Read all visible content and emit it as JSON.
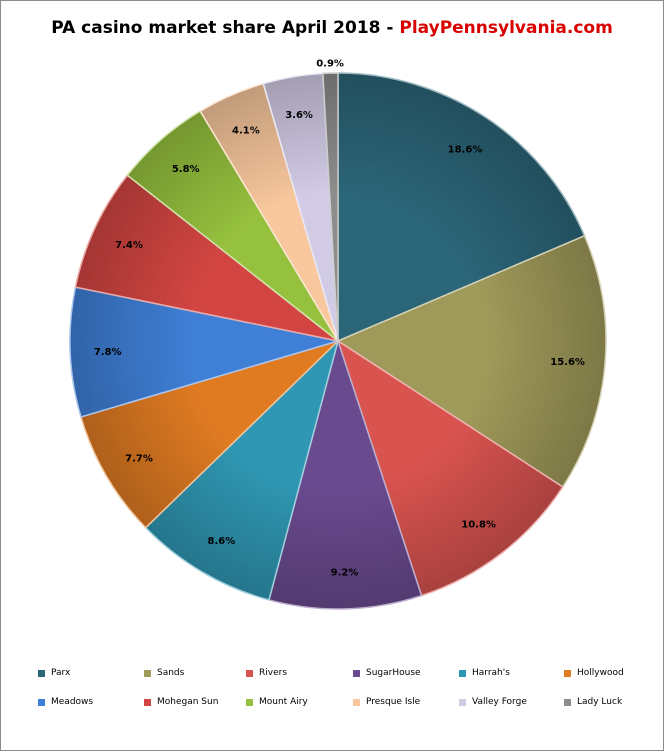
{
  "title": {
    "main": "PA casino market share April 2018 - ",
    "brand": "PlayPennsylvania.com"
  },
  "colors": {
    "brand": "#d90000"
  },
  "chart_data": {
    "type": "pie",
    "title": "PA casino market share April 2018 - PlayPennsylvania.com",
    "legend_position": "bottom",
    "categories": [
      "Parx",
      "Sands",
      "Rivers",
      "SugarHouse",
      "Harrah's",
      "Hollywood",
      "Meadows",
      "Mohegan Sun",
      "Mount Airy",
      "Presque Isle",
      "Valley Forge",
      "Lady Luck"
    ],
    "values": [
      18.6,
      15.6,
      10.8,
      9.2,
      8.6,
      7.7,
      7.8,
      7.4,
      5.8,
      4.1,
      3.6,
      0.9
    ],
    "labels": [
      "18.6%",
      "15.6%",
      "10.8%",
      "9.2%",
      "8.6%",
      "7.7%",
      "7.8%",
      "7.4%",
      "5.8%",
      "4.1%",
      "3.6%",
      "0.9%"
    ],
    "colors": [
      "#2b6578",
      "#a09a5a",
      "#d9534f",
      "#6a4a8f",
      "#2f97b3",
      "#e07b22",
      "#3f7fd6",
      "#d24542",
      "#96c13e",
      "#f8c79d",
      "#d2cbe6",
      "#8c8c8c"
    ]
  }
}
